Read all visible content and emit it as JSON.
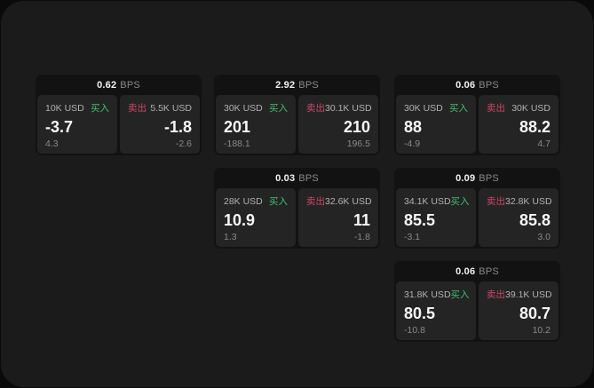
{
  "labels": {
    "bps_unit": "BPS",
    "buy": "买入",
    "sell": "卖出"
  },
  "colors": {
    "buy_accent": "#3fbf6f",
    "sell_accent": "#cc4763",
    "panel_bg": "#242424",
    "card_bg": "#121212",
    "page_bg": "#1b1b1b",
    "outer_bg": "#0a0a0a"
  },
  "cards": [
    {
      "bps": "0.62",
      "buy": {
        "amount": "10K USD",
        "price": "-3.7",
        "change": "4.3"
      },
      "sell": {
        "amount": "5.5K USD",
        "price": "-1.8",
        "change": "-2.6"
      }
    },
    {
      "bps": "2.92",
      "buy": {
        "amount": "30K USD",
        "price": "201",
        "change": "-188.1"
      },
      "sell": {
        "amount": "30.1K USD",
        "price": "210",
        "change": "196.5"
      }
    },
    {
      "bps": "0.06",
      "buy": {
        "amount": "30K USD",
        "price": "88",
        "change": "-4.9"
      },
      "sell": {
        "amount": "30K USD",
        "price": "88.2",
        "change": "4.7"
      }
    },
    {
      "bps": "0.03",
      "buy": {
        "amount": "28K USD",
        "price": "10.9",
        "change": "1.3"
      },
      "sell": {
        "amount": "32.6K USD",
        "price": "11",
        "change": "-1.8"
      }
    },
    {
      "bps": "0.09",
      "buy": {
        "amount": "34.1K USD",
        "price": "85.5",
        "change": "-3.1"
      },
      "sell": {
        "amount": "32.8K USD",
        "price": "85.8",
        "change": "3.0"
      }
    },
    {
      "bps": "0.06",
      "buy": {
        "amount": "31.8K USD",
        "price": "80.5",
        "change": "-10.8"
      },
      "sell": {
        "amount": "39.1K USD",
        "price": "80.7",
        "change": "10.2"
      }
    }
  ]
}
